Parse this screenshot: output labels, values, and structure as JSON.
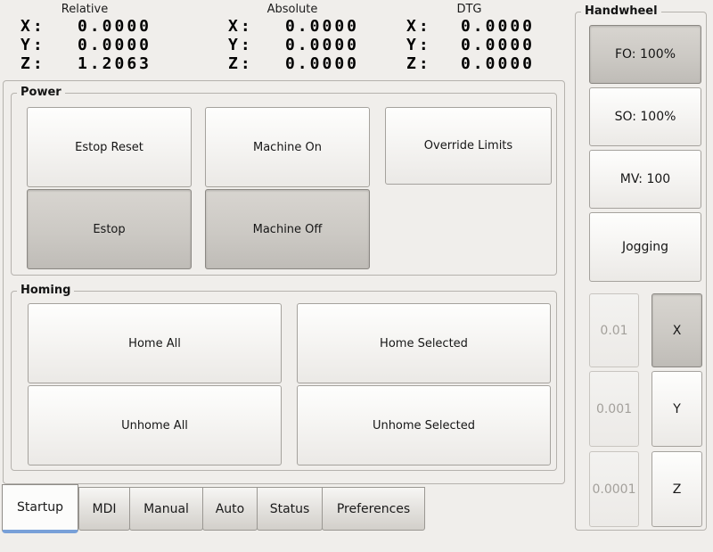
{
  "colors": {
    "background": "#f0eeeb",
    "active_tab_accent_blue": "#78a0d8",
    "pressed_button_gray": "#c9c6c1",
    "normal_button_face": "#f6f5f3"
  },
  "dro": {
    "columns": [
      {
        "header": "Relative",
        "rows": [
          {
            "label": "X:",
            "value": "0.0000"
          },
          {
            "label": "Y:",
            "value": "0.0000"
          },
          {
            "label": "Z:",
            "value": "1.2063"
          }
        ]
      },
      {
        "header": "Absolute",
        "rows": [
          {
            "label": "X:",
            "value": "0.0000"
          },
          {
            "label": "Y:",
            "value": "0.0000"
          },
          {
            "label": "Z:",
            "value": "0.0000"
          }
        ]
      },
      {
        "header": "DTG",
        "rows": [
          {
            "label": "X:",
            "value": "0.0000"
          },
          {
            "label": "Y:",
            "value": "0.0000"
          },
          {
            "label": "Z:",
            "value": "0.0000"
          }
        ]
      }
    ]
  },
  "power": {
    "label": "Power",
    "buttons": {
      "estop_reset": {
        "label": "Estop Reset",
        "state": "normal"
      },
      "machine_on": {
        "label": "Machine On",
        "state": "normal"
      },
      "override_limits": {
        "label": "Override Limits",
        "state": "normal"
      },
      "estop": {
        "label": "Estop",
        "state": "pressed"
      },
      "machine_off": {
        "label": "Machine Off",
        "state": "pressed"
      }
    }
  },
  "homing": {
    "label": "Homing",
    "buttons": {
      "home_all": {
        "label": "Home All",
        "state": "normal"
      },
      "home_selected": {
        "label": "Home Selected",
        "state": "normal"
      },
      "unhome_all": {
        "label": "Unhome All",
        "state": "normal"
      },
      "unhome_selected": {
        "label": "Unhome Selected",
        "state": "normal"
      }
    }
  },
  "handwheel": {
    "label": "Handwheel",
    "feed_override": {
      "label": "FO: 100%",
      "state": "pressed"
    },
    "spindle_override": {
      "label": "SO: 100%",
      "state": "normal"
    },
    "max_velocity": {
      "label": "MV: 100",
      "state": "normal"
    },
    "jogging": {
      "label": "Jogging",
      "state": "normal"
    },
    "increments": [
      {
        "label": "0.01",
        "state": "disabled"
      },
      {
        "label": "0.001",
        "state": "disabled"
      },
      {
        "label": "0.0001",
        "state": "disabled"
      }
    ],
    "axes": [
      {
        "label": "X",
        "state": "pressed"
      },
      {
        "label": "Y",
        "state": "normal"
      },
      {
        "label": "Z",
        "state": "normal"
      }
    ]
  },
  "tabs": [
    {
      "label": "Startup",
      "active": true
    },
    {
      "label": "MDI",
      "active": false
    },
    {
      "label": "Manual",
      "active": false
    },
    {
      "label": "Auto",
      "active": false
    },
    {
      "label": "Status",
      "active": false
    },
    {
      "label": "Preferences",
      "active": false
    }
  ]
}
